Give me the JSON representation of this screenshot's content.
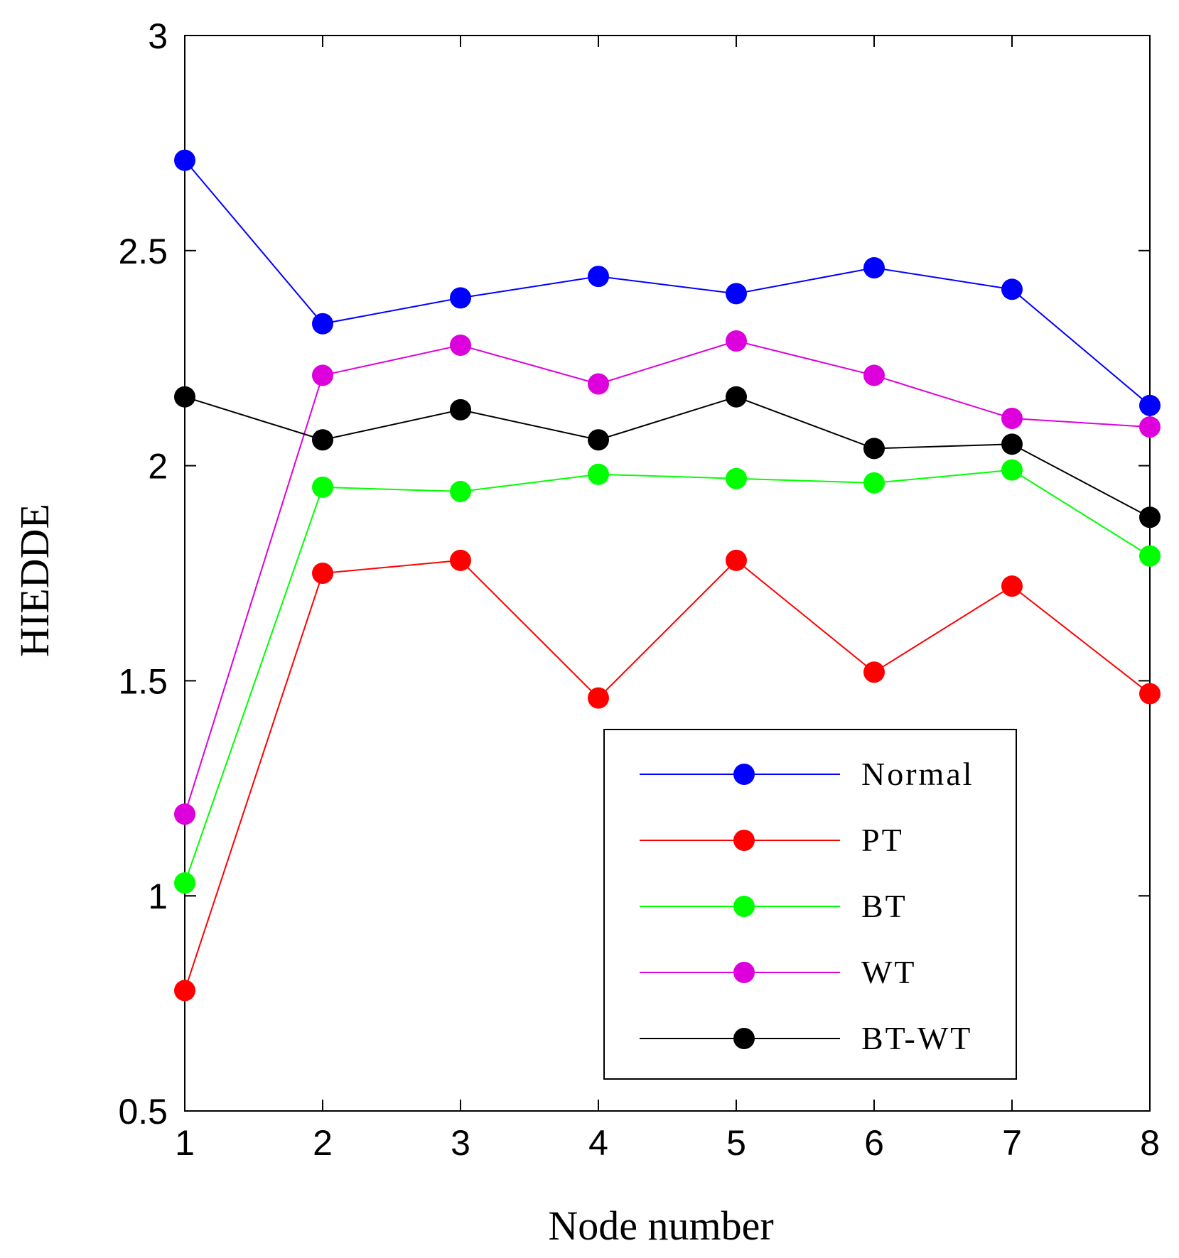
{
  "chart_data": {
    "type": "line",
    "title": "",
    "xlabel": "Node number",
    "ylabel": "HIEDDE",
    "x": [
      1,
      2,
      3,
      4,
      5,
      6,
      7,
      8
    ],
    "xlim": [
      1,
      8
    ],
    "ylim": [
      0.5,
      3
    ],
    "xticks": [
      "1",
      "2",
      "3",
      "4",
      "5",
      "6",
      "7",
      "8"
    ],
    "yticks": [
      {
        "value": 0.5,
        "label": "0.5"
      },
      {
        "value": 1,
        "label": "1"
      },
      {
        "value": 1.5,
        "label": "1.5"
      },
      {
        "value": 2,
        "label": "2"
      },
      {
        "value": 2.5,
        "label": "2.5"
      },
      {
        "value": 3,
        "label": "3"
      }
    ],
    "grid": false,
    "legend_position": "bottom-right",
    "series": [
      {
        "name": "Normal",
        "color": "#0000ff",
        "values": [
          2.71,
          2.33,
          2.39,
          2.44,
          2.4,
          2.46,
          2.41,
          2.14
        ]
      },
      {
        "name": "PT",
        "color": "#ff0000",
        "values": [
          0.78,
          1.75,
          1.78,
          1.46,
          1.78,
          1.52,
          1.72,
          1.47
        ]
      },
      {
        "name": "BT",
        "color": "#00ff00",
        "values": [
          1.03,
          1.95,
          1.94,
          1.98,
          1.97,
          1.96,
          1.99,
          1.79
        ]
      },
      {
        "name": "WT",
        "color": "#dd00dd",
        "values": [
          1.19,
          2.21,
          2.28,
          2.19,
          2.29,
          2.21,
          2.11,
          2.09
        ]
      },
      {
        "name": "BT-WT",
        "color": "#000000",
        "values": [
          2.16,
          2.06,
          2.13,
          2.06,
          2.16,
          2.04,
          2.05,
          1.88
        ]
      }
    ]
  }
}
